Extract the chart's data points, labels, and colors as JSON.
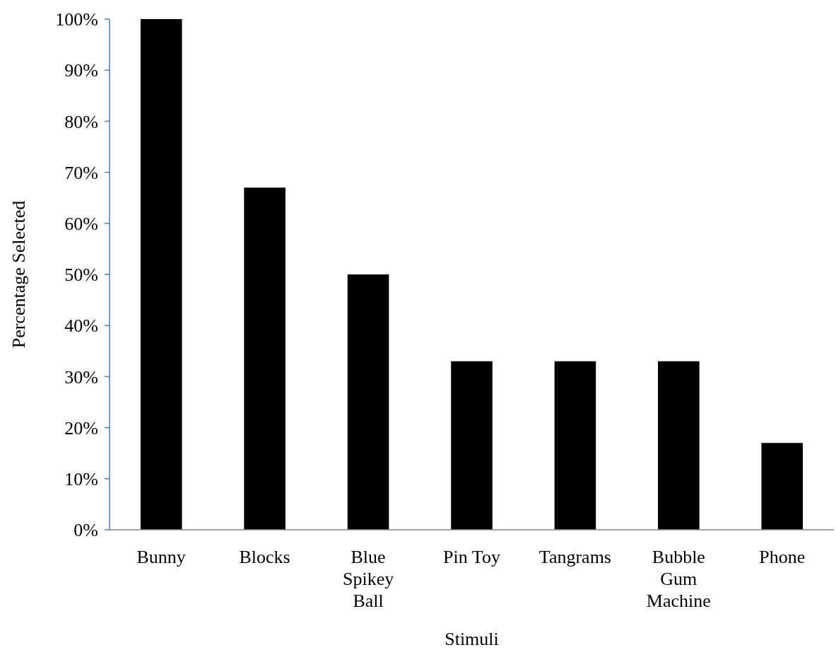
{
  "chart_data": {
    "type": "bar",
    "xlabel": "Stimuli",
    "ylabel": "Percentage Selected",
    "categories": [
      "Bunny",
      "Blocks",
      "Blue\nSpikey\nBall",
      "Pin Toy",
      "Tangrams",
      "Bubble\nGum\nMachine",
      "Phone"
    ],
    "values": [
      100,
      67,
      50,
      33,
      33,
      33,
      17
    ],
    "color": "#000000",
    "ylim": [
      0,
      100
    ],
    "yticks": [
      {
        "value": 0,
        "label": "0%"
      },
      {
        "value": 10,
        "label": "10%"
      },
      {
        "value": 20,
        "label": "20%"
      },
      {
        "value": 30,
        "label": "30%"
      },
      {
        "value": 40,
        "label": "40%"
      },
      {
        "value": 50,
        "label": "50%"
      },
      {
        "value": 60,
        "label": "60%"
      },
      {
        "value": 70,
        "label": "70%"
      },
      {
        "value": 80,
        "label": "80%"
      },
      {
        "value": 90,
        "label": "90%"
      },
      {
        "value": 100,
        "label": "100%"
      }
    ]
  }
}
